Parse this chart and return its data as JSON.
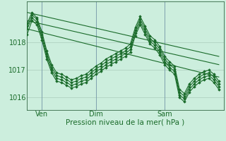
{
  "background_color": "#cceedd",
  "grid_color": "#aaccbb",
  "line_color": "#1a6b2a",
  "marker_color": "#1a6b2a",
  "xlabel": "Pression niveau de la mer( hPa )",
  "xlabel_fontsize": 7.5,
  "tick_label_color": "#1a6b2a",
  "tick_fontsize": 7,
  "ylim": [
    1015.55,
    1019.5
  ],
  "yticks": [
    1016,
    1017,
    1018
  ],
  "xlim": [
    0,
    40
  ],
  "xtick_positions": [
    3,
    14,
    28
  ],
  "xtick_labels": [
    "Ven",
    "Dim",
    "Sam"
  ],
  "vline_positions": [
    3,
    14,
    28
  ],
  "series1_x": [
    0,
    1,
    2,
    3,
    4,
    5,
    6,
    7,
    8,
    9,
    10,
    11,
    12,
    13,
    14,
    15,
    16,
    17,
    18,
    19,
    20,
    21,
    22,
    23,
    24,
    25,
    26,
    27,
    28,
    29,
    30,
    31,
    32,
    33,
    34,
    35,
    36,
    37,
    38,
    39
  ],
  "series1_y": [
    1018.7,
    1019.1,
    1018.9,
    1018.4,
    1017.7,
    1017.2,
    1016.9,
    1016.85,
    1016.75,
    1016.65,
    1016.7,
    1016.8,
    1016.85,
    1017.0,
    1017.15,
    1017.25,
    1017.4,
    1017.5,
    1017.6,
    1017.7,
    1017.8,
    1017.95,
    1018.55,
    1018.95,
    1018.6,
    1018.25,
    1018.1,
    1017.85,
    1017.5,
    1017.3,
    1017.15,
    1016.3,
    1016.15,
    1016.5,
    1016.7,
    1016.85,
    1016.95,
    1017.0,
    1016.85,
    1016.6
  ],
  "series2_x": [
    0,
    1,
    2,
    3,
    4,
    5,
    6,
    7,
    8,
    9,
    10,
    11,
    12,
    13,
    14,
    15,
    16,
    17,
    18,
    19,
    20,
    21,
    22,
    23,
    24,
    25,
    26,
    27,
    28,
    29,
    30,
    31,
    32,
    33,
    34,
    35,
    36,
    37,
    38,
    39
  ],
  "series2_y": [
    1018.6,
    1019.0,
    1018.85,
    1018.3,
    1017.6,
    1017.1,
    1016.8,
    1016.75,
    1016.65,
    1016.55,
    1016.6,
    1016.7,
    1016.75,
    1016.9,
    1017.05,
    1017.15,
    1017.3,
    1017.4,
    1017.5,
    1017.6,
    1017.7,
    1017.85,
    1018.45,
    1018.85,
    1018.5,
    1018.15,
    1018.0,
    1017.75,
    1017.4,
    1017.2,
    1017.05,
    1016.2,
    1016.05,
    1016.4,
    1016.6,
    1016.75,
    1016.85,
    1016.9,
    1016.75,
    1016.5
  ],
  "series3_x": [
    0,
    1,
    2,
    3,
    4,
    5,
    6,
    7,
    8,
    9,
    10,
    11,
    12,
    13,
    14,
    15,
    16,
    17,
    18,
    19,
    20,
    21,
    22,
    23,
    24,
    25,
    26,
    27,
    28,
    29,
    30,
    31,
    32,
    33,
    34,
    35,
    36,
    37,
    38,
    39
  ],
  "series3_y": [
    1018.5,
    1018.9,
    1018.75,
    1018.2,
    1017.5,
    1017.0,
    1016.7,
    1016.65,
    1016.55,
    1016.45,
    1016.5,
    1016.6,
    1016.65,
    1016.8,
    1016.95,
    1017.05,
    1017.2,
    1017.3,
    1017.4,
    1017.5,
    1017.6,
    1017.75,
    1018.35,
    1018.75,
    1018.4,
    1018.05,
    1017.9,
    1017.65,
    1017.3,
    1017.1,
    1016.95,
    1016.1,
    1015.95,
    1016.3,
    1016.5,
    1016.65,
    1016.75,
    1016.8,
    1016.65,
    1016.4
  ],
  "series4_x": [
    0,
    1,
    2,
    3,
    4,
    5,
    6,
    7,
    8,
    9,
    10,
    11,
    12,
    13,
    14,
    15,
    16,
    17,
    18,
    19,
    20,
    21,
    22,
    23,
    24,
    25,
    26,
    27,
    28,
    29,
    30,
    31,
    32,
    33,
    34,
    35,
    36,
    37,
    38,
    39
  ],
  "series4_y": [
    1018.3,
    1018.8,
    1018.65,
    1018.1,
    1017.4,
    1016.9,
    1016.6,
    1016.55,
    1016.45,
    1016.35,
    1016.4,
    1016.5,
    1016.55,
    1016.7,
    1016.85,
    1016.95,
    1017.1,
    1017.2,
    1017.3,
    1017.4,
    1017.5,
    1017.65,
    1018.25,
    1018.65,
    1018.3,
    1017.95,
    1017.8,
    1017.55,
    1017.2,
    1017.0,
    1016.85,
    1016.0,
    1015.85,
    1016.2,
    1016.4,
    1016.55,
    1016.65,
    1016.7,
    1016.55,
    1016.3
  ],
  "trend1_x": [
    0,
    39
  ],
  "trend1_y": [
    1019.1,
    1017.5
  ],
  "trend2_x": [
    0,
    39
  ],
  "trend2_y": [
    1018.8,
    1017.2
  ],
  "trend3_x": [
    0,
    39
  ],
  "trend3_y": [
    1018.5,
    1016.75
  ]
}
